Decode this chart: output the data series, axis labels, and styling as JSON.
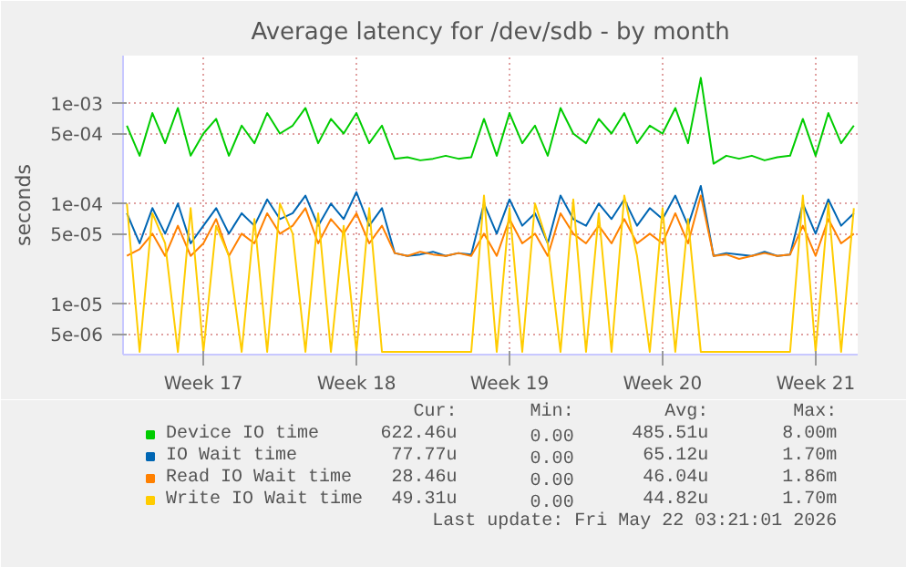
{
  "chart_data": {
    "type": "line",
    "title": "Average latency for /dev/sdb - by month",
    "ylabel": "seconds",
    "log": "y",
    "grid": true,
    "legend": "bottom",
    "marker": "none",
    "line_style": "solid",
    "categories": [
      null,
      null,
      null,
      null,
      null,
      null,
      "Week 17",
      null,
      null,
      null,
      null,
      null,
      null,
      null,
      null,
      null,
      null,
      null,
      "Week 18",
      null,
      null,
      null,
      null,
      null,
      null,
      null,
      null,
      null,
      null,
      null,
      "Week 19",
      null,
      null,
      null,
      null,
      null,
      null,
      null,
      null,
      null,
      null,
      null,
      "Week 20",
      null,
      null,
      null,
      null,
      null,
      null,
      null,
      null,
      null,
      null,
      null,
      "Week 21",
      null,
      null,
      null
    ],
    "ylim": [
      3.1e-06,
      0.003
    ],
    "yticks": [
      {
        "value": 5e-06,
        "label": "5e-06"
      },
      {
        "value": 1e-05,
        "label": "1e-05"
      },
      {
        "value": 5e-05,
        "label": "5e-05"
      },
      {
        "value": 0.0001,
        "label": "1e-04"
      },
      {
        "value": 0.0005,
        "label": "5e-04"
      },
      {
        "value": 0.001,
        "label": "1e-03"
      }
    ],
    "series": [
      {
        "name": "Device IO time",
        "color": "#00cc00",
        "values": [
          0.0006,
          0.0003,
          0.0008,
          0.0004,
          0.0009,
          0.0003,
          0.0005,
          0.0007,
          0.0003,
          0.0006,
          0.0004,
          0.0008,
          0.0005,
          0.0006,
          0.0009,
          0.0004,
          0.0007,
          0.0005,
          0.0008,
          0.0004,
          0.0006,
          0.00028,
          0.00029,
          0.00027,
          0.00028,
          0.0003,
          0.00028,
          0.00029,
          0.0007,
          0.0003,
          0.0008,
          0.0004,
          0.0006,
          0.0003,
          0.0009,
          0.0005,
          0.0004,
          0.0007,
          0.0005,
          0.0008,
          0.0004,
          0.0006,
          0.0005,
          0.0009,
          0.0004,
          0.0018,
          0.00025,
          0.0003,
          0.00028,
          0.0003,
          0.00027,
          0.00029,
          0.0003,
          0.0007,
          0.0003,
          0.0008,
          0.0004,
          0.0006
        ]
      },
      {
        "name": "IO Wait time",
        "color": "#0066b3",
        "values": [
          8e-05,
          4e-05,
          9e-05,
          5e-05,
          0.0001,
          4e-05,
          6e-05,
          9e-05,
          5e-05,
          8e-05,
          6e-05,
          0.00011,
          7e-05,
          8e-05,
          0.00012,
          6e-05,
          0.0001,
          7e-05,
          0.00013,
          6e-05,
          9e-05,
          3.2e-05,
          3e-05,
          3.1e-05,
          3.3e-05,
          3e-05,
          3.2e-05,
          3.1e-05,
          0.0001,
          5e-05,
          0.00011,
          6e-05,
          8e-05,
          4e-05,
          0.00012,
          7e-05,
          6e-05,
          0.0001,
          7e-05,
          0.00011,
          6e-05,
          9e-05,
          7e-05,
          0.00012,
          6e-05,
          0.00015,
          3e-05,
          3.2e-05,
          3.1e-05,
          3e-05,
          3.3e-05,
          3e-05,
          3.1e-05,
          0.0001,
          5e-05,
          0.00011,
          6e-05,
          8e-05
        ]
      },
      {
        "name": "Read IO Wait time",
        "color": "#ff8000",
        "values": [
          3e-05,
          3.5e-05,
          5e-05,
          3e-05,
          6e-05,
          3e-05,
          4e-05,
          7e-05,
          3e-05,
          5e-05,
          4e-05,
          8e-05,
          5e-05,
          6e-05,
          9e-05,
          4e-05,
          7e-05,
          5e-05,
          8e-05,
          4e-05,
          6e-05,
          3.2e-05,
          3e-05,
          3.3e-05,
          3.1e-05,
          3e-05,
          3.2e-05,
          3e-05,
          5e-05,
          3e-05,
          7e-05,
          4e-05,
          5e-05,
          3e-05,
          8e-05,
          5e-05,
          4e-05,
          6e-05,
          4e-05,
          7e-05,
          4e-05,
          5e-05,
          4e-05,
          8e-05,
          4e-05,
          0.00012,
          3e-05,
          3.1e-05,
          2.8e-05,
          3e-05,
          3.2e-05,
          3e-05,
          3.1e-05,
          6e-05,
          3e-05,
          7e-05,
          4e-05,
          5e-05
        ]
      },
      {
        "name": "Write IO Wait time",
        "color": "#ffcc00",
        "values": [
          0.0001,
          3.3e-06,
          8e-05,
          4e-05,
          3.3e-06,
          9e-05,
          3.3e-06,
          6e-05,
          3e-05,
          3.3e-06,
          7e-05,
          3.3e-06,
          0.0001,
          5e-05,
          3.3e-06,
          8e-05,
          3.3e-06,
          6e-05,
          3.3e-06,
          9e-05,
          3.3e-06,
          3.3e-06,
          3.3e-06,
          3.3e-06,
          3.3e-06,
          3.3e-06,
          3.3e-06,
          3.3e-06,
          0.00012,
          3.3e-06,
          9e-05,
          3.3e-06,
          0.0001,
          4e-05,
          3.3e-06,
          0.00011,
          3.3e-06,
          8e-05,
          3.3e-06,
          0.00012,
          3e-05,
          3.3e-06,
          9e-05,
          3.3e-06,
          7e-05,
          3.3e-06,
          3.3e-06,
          3.3e-06,
          3.3e-06,
          3.3e-06,
          3.3e-06,
          3.3e-06,
          3.3e-06,
          0.00012,
          3.3e-06,
          0.0001,
          3.3e-06,
          9e-05
        ]
      }
    ],
    "annotations": [
      "Cur:",
      "Min:",
      "Avg:",
      "Max:",
      "622.46u",
      "0.00",
      "485.51u",
      "8.00m",
      "77.77u",
      "0.00",
      "65.12u",
      "1.70m",
      "28.46u",
      "0.00",
      "46.04u",
      "1.86m",
      "49.31u",
      "0.00",
      "44.82u",
      "1.70m",
      "Last update: Fri May 22 03:21:01 2026"
    ]
  }
}
